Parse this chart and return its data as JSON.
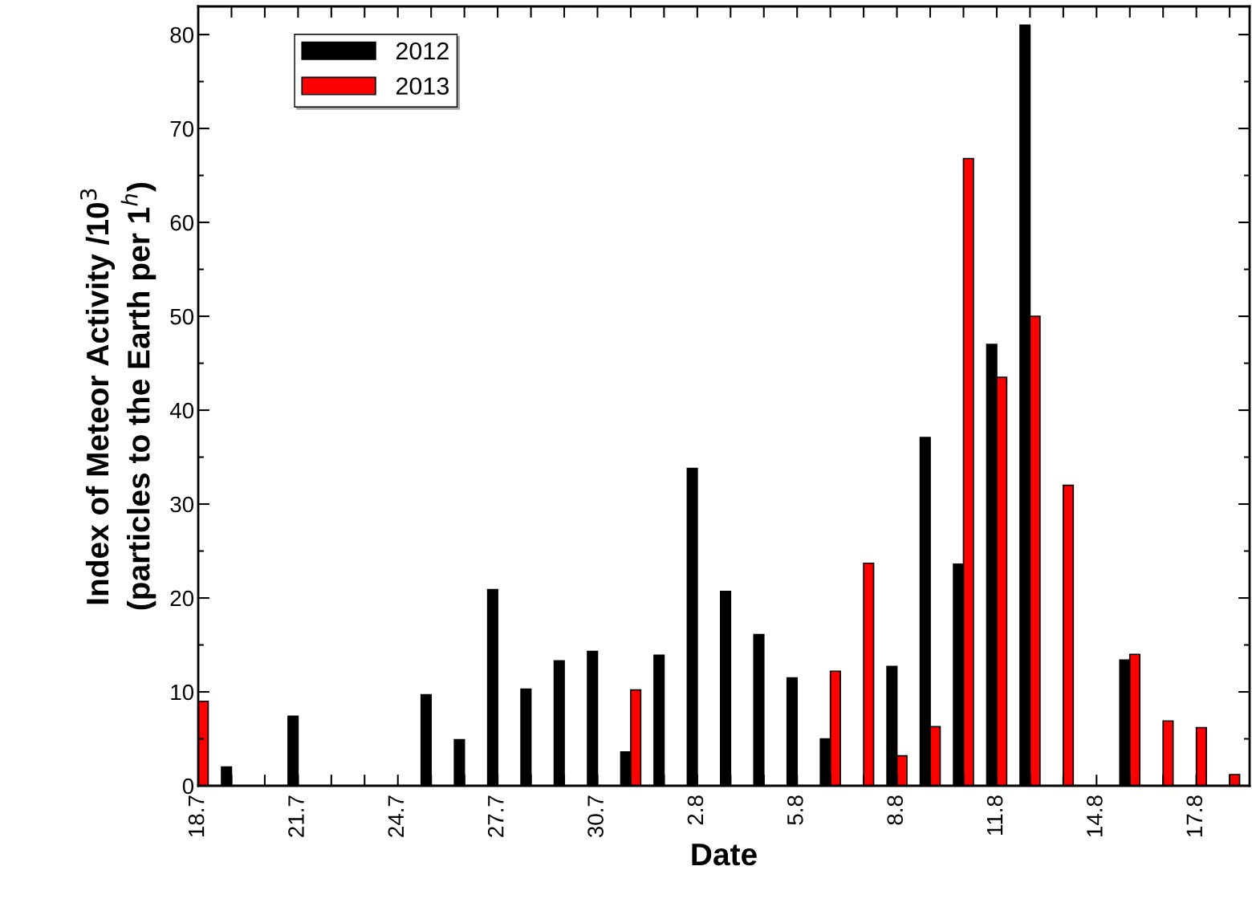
{
  "chart_data": {
    "type": "bar",
    "xlabel": "Date",
    "ylabel": "Index of Meteor Activity /10$^{3}$\n(particles to the Earth per 1$^{h}$)",
    "categories": [
      "18.7",
      null,
      null,
      "21.7",
      null,
      null,
      "24.7",
      null,
      null,
      "27.7",
      null,
      null,
      "30.7",
      null,
      null,
      "2.8",
      null,
      null,
      "5.8",
      null,
      null,
      "8.8",
      null,
      null,
      "11.8",
      null,
      null,
      "14.8",
      null,
      null,
      "17.8",
      null
    ],
    "series": [
      {
        "name": "2012",
        "color": "#000000",
        "values": [
          null,
          2.0,
          null,
          7.4,
          null,
          null,
          null,
          9.7,
          4.9,
          20.9,
          10.3,
          13.3,
          14.3,
          3.6,
          13.9,
          33.8,
          20.7,
          16.1,
          11.5,
          5.0,
          null,
          12.7,
          37.1,
          23.6,
          47.0,
          81.0,
          null,
          null,
          13.4,
          null,
          null,
          null
        ]
      },
      {
        "name": "2013",
        "color": "#ff0000",
        "values": [
          9.0,
          null,
          null,
          null,
          null,
          null,
          null,
          null,
          null,
          null,
          null,
          null,
          null,
          10.2,
          null,
          null,
          null,
          null,
          null,
          12.2,
          23.7,
          3.2,
          6.3,
          66.8,
          43.5,
          50.0,
          32.0,
          null,
          14.0,
          6.9,
          6.2,
          1.2
        ]
      }
    ],
    "ylim": [
      0,
      83
    ],
    "yticks": [
      0,
      10,
      20,
      30,
      40,
      50,
      60,
      70,
      80
    ],
    "legend": "top left",
    "grid": false
  }
}
